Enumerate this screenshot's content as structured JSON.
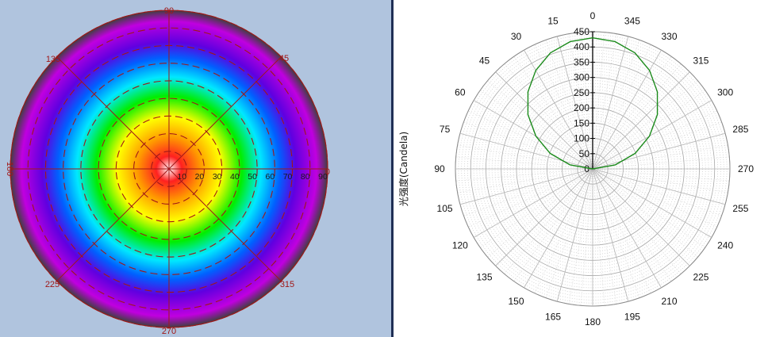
{
  "chart_data": [
    {
      "type": "heatmap",
      "subtype": "polar-false-color",
      "angle_labels": [
        "90",
        "45",
        "0",
        "315",
        "270",
        "225",
        "180",
        "135"
      ],
      "angle_values": [
        90,
        45,
        0,
        315,
        270,
        225,
        180,
        135
      ],
      "radial_labels": [
        "10",
        "20",
        "30",
        "40",
        "50",
        "60",
        "70",
        "80",
        "90"
      ],
      "radial_values": [
        10,
        20,
        30,
        40,
        50,
        60,
        70,
        80,
        90
      ],
      "rlim": [
        0,
        90
      ],
      "colormap": [
        "#ffffff",
        "#ff2020",
        "#ff9a00",
        "#ffff00",
        "#00ee00",
        "#00e8ff",
        "#0060ff",
        "#6000e0",
        "#c000e0",
        "#404040"
      ],
      "grid_color": "#a01818",
      "background": "#b0c4de"
    },
    {
      "type": "line",
      "subtype": "polar",
      "ylabel": "光强度(Candela)",
      "theta_tick_labels": [
        "0",
        "15",
        "30",
        "45",
        "60",
        "75",
        "90",
        "105",
        "120",
        "135",
        "150",
        "165",
        "180",
        "195",
        "210",
        "225",
        "240",
        "255",
        "270",
        "285",
        "300",
        "315",
        "330",
        "345"
      ],
      "r_tick_labels": [
        "0",
        "50",
        "100",
        "150",
        "200",
        "250",
        "300",
        "350",
        "400",
        "450"
      ],
      "r_tick_values": [
        0,
        50,
        100,
        150,
        200,
        250,
        300,
        350,
        400,
        450
      ],
      "rlim": [
        0,
        450
      ],
      "series": [
        {
          "color": "#1a8a1a",
          "theta": [
            0,
            10,
            20,
            30,
            40,
            50,
            60,
            70,
            80,
            90,
            270,
            280,
            290,
            300,
            310,
            320,
            330,
            340,
            350,
            360
          ],
          "r": [
            430,
            424,
            405,
            373,
            330,
            277,
            215,
            148,
            75,
            0,
            0,
            75,
            148,
            215,
            277,
            330,
            373,
            405,
            424,
            430
          ]
        }
      ]
    }
  ]
}
